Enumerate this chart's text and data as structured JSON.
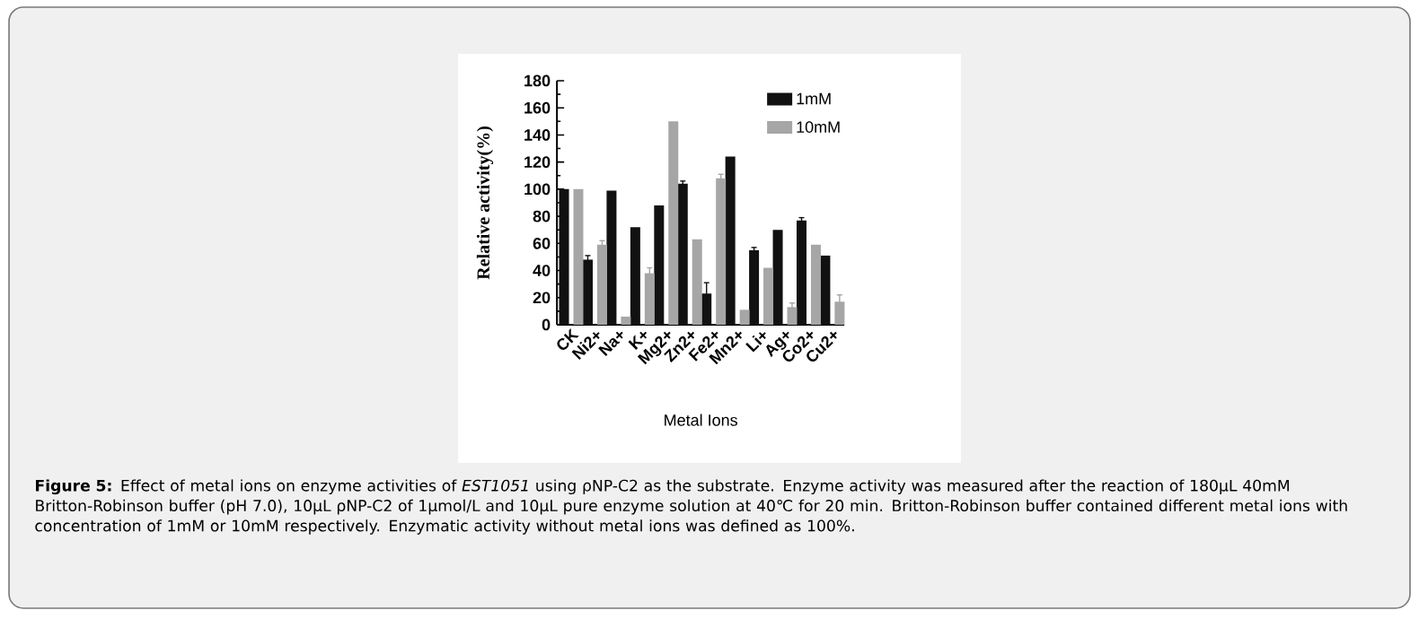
{
  "chart_data": {
    "type": "bar",
    "categories": [
      "CK",
      "Ni2+",
      "Na+",
      "K+",
      "Mg2+",
      "Zn2+",
      "Fe2+",
      "Mn2+",
      "Li+",
      "Ag+",
      "Co2+",
      "Cu2+"
    ],
    "series": [
      {
        "name": "1mM",
        "color": "#111111",
        "values": [
          100,
          48,
          99,
          72,
          88,
          104,
          23,
          124,
          55,
          70,
          77,
          51
        ],
        "errors": [
          null,
          3,
          null,
          null,
          null,
          2,
          8,
          null,
          2,
          null,
          2,
          null
        ]
      },
      {
        "name": "10mM",
        "color": "#a6a6a6",
        "values": [
          100,
          59,
          6,
          38,
          150,
          63,
          108,
          11,
          42,
          13,
          59,
          17
        ],
        "errors": [
          null,
          3,
          null,
          4,
          null,
          null,
          3,
          null,
          null,
          3,
          null,
          5
        ]
      }
    ],
    "xlabel": "Metal Ions",
    "ylabel": "Relative activity(%)",
    "ylim": [
      0,
      180
    ],
    "yticks": [
      0,
      20,
      40,
      60,
      80,
      100,
      120,
      140,
      160,
      180
    ],
    "legend": "top right",
    "annotations": [
      "**Figure 5:** Effect of metal ions on enzyme activities of *EST1051* using ρNP-C2 as the substrate. Enzyme activity was measured after the reaction of 180μL 40mM Britton-Robinson buffer (pH 7.0), 10μL ρNP-C2 of 1μmol/L and 10μL pure enzyme solution at 40℃ for 20 min. Britton-Robinson buffer contained different metal ions with concentration of 1mM or 10mM respectively. Enzymatic activity without metal ions was defined as 100%."
    ]
  }
}
